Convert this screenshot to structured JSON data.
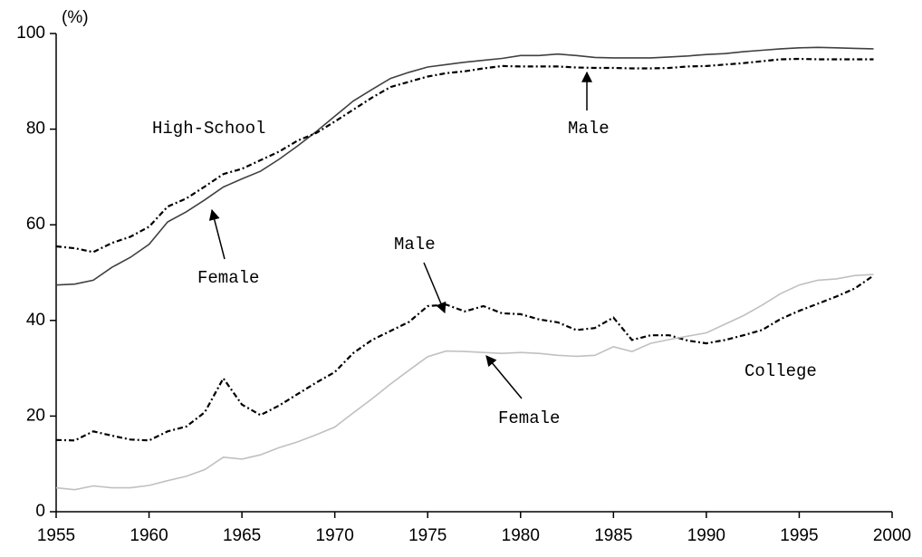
{
  "chart_data": {
    "type": "line",
    "y_unit": "(%)",
    "annotations": [
      "High-School",
      "College"
    ],
    "x": [
      1955,
      1956,
      1957,
      1958,
      1959,
      1960,
      1961,
      1962,
      1963,
      1964,
      1965,
      1966,
      1967,
      1968,
      1969,
      1970,
      1971,
      1972,
      1973,
      1974,
      1975,
      1976,
      1977,
      1978,
      1979,
      1980,
      1981,
      1982,
      1983,
      1984,
      1985,
      1986,
      1987,
      1988,
      1989,
      1990,
      1991,
      1992,
      1993,
      1994,
      1995,
      1996,
      1997,
      1998,
      1999
    ],
    "series": [
      {
        "name": "Female",
        "color": "#404040",
        "linestyle": "solid",
        "values": [
          47.4,
          47.6,
          48.4,
          51.1,
          53.2,
          55.9,
          60.6,
          62.7,
          65.2,
          67.9,
          69.6,
          71.2,
          73.7,
          76.5,
          79.5,
          82.7,
          85.9,
          88.3,
          90.6,
          91.9,
          93.0,
          93.5,
          94.0,
          94.4,
          94.8,
          95.4,
          95.4,
          95.7,
          95.4,
          95.0,
          94.9,
          94.9,
          94.9,
          95.1,
          95.3,
          95.6,
          95.8,
          96.2,
          96.5,
          96.8,
          97.0,
          97.1,
          97.0,
          96.9,
          96.8
        ]
      },
      {
        "name": "Male",
        "color": "#000000",
        "linestyle": "dashed",
        "values": [
          55.5,
          55.1,
          54.3,
          56.2,
          57.5,
          59.6,
          63.8,
          65.5,
          68.0,
          70.6,
          71.7,
          73.5,
          75.3,
          77.6,
          79.2,
          81.6,
          84.1,
          86.6,
          88.8,
          89.9,
          91.0,
          91.7,
          92.1,
          92.7,
          93.2,
          93.1,
          93.1,
          93.1,
          92.9,
          92.8,
          92.8,
          92.7,
          92.7,
          92.8,
          93.1,
          93.2,
          93.5,
          93.8,
          94.2,
          94.6,
          94.7,
          94.6,
          94.6,
          94.6,
          94.6
        ]
      },
      {
        "name": "Male",
        "color": "#000000",
        "linestyle": "dashed",
        "values": [
          15.0,
          14.9,
          16.8,
          15.9,
          15.1,
          14.9,
          16.8,
          17.8,
          20.8,
          27.9,
          22.4,
          20.2,
          22.2,
          24.6,
          27.0,
          29.2,
          33.2,
          35.9,
          37.8,
          39.7,
          43.0,
          43.3,
          41.9,
          43.0,
          41.5,
          41.3,
          40.2,
          39.6,
          38.0,
          38.4,
          40.6,
          35.9,
          36.9,
          36.9,
          35.8,
          35.2,
          35.9,
          36.9,
          38.0,
          40.3,
          42.0,
          43.5,
          45.0,
          46.7,
          49.4
        ]
      },
      {
        "name": "Female",
        "color": "#c0c0c0",
        "linestyle": "solid",
        "values": [
          5.0,
          4.6,
          5.4,
          5.0,
          5.0,
          5.5,
          6.5,
          7.4,
          8.8,
          11.4,
          11.0,
          11.9,
          13.4,
          14.6,
          16.1,
          17.7,
          20.7,
          23.6,
          26.7,
          29.6,
          32.4,
          33.6,
          33.5,
          33.3,
          33.1,
          33.3,
          33.1,
          32.7,
          32.5,
          32.7,
          34.5,
          33.5,
          35.2,
          36.0,
          36.7,
          37.4,
          39.2,
          41.0,
          43.2,
          45.6,
          47.4,
          48.4,
          48.7,
          49.4,
          49.6
        ]
      }
    ],
    "xlim": [
      1955,
      2000
    ],
    "xticks": [
      1955,
      1960,
      1965,
      1970,
      1975,
      1980,
      1985,
      1990,
      1995,
      2000
    ],
    "ylim": [
      0,
      100
    ],
    "yticks": [
      0,
      20,
      40,
      60,
      80,
      100
    ],
    "grid": false
  }
}
